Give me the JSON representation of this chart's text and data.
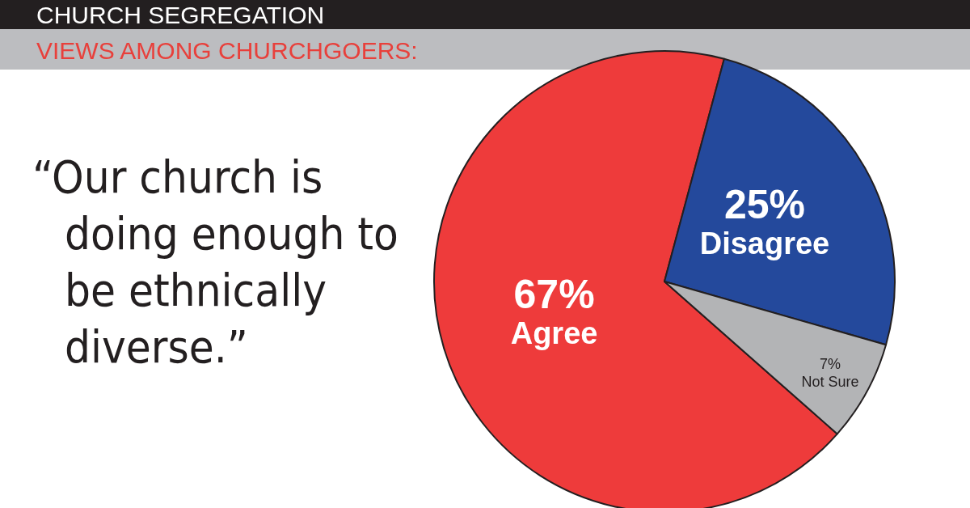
{
  "chart_data": {
    "type": "pie",
    "title": "CHURCH SEGREGATION",
    "subtitle": "VIEWS AMONG CHURCHGOERS:",
    "annotations": [
      "“Our church is doing enough to be ethnically diverse.”"
    ],
    "categories": [
      "Agree",
      "Disagree",
      "Not Sure"
    ],
    "values": [
      67,
      25,
      7
    ],
    "colors": [
      "#ee3b3b",
      "#24499c",
      "#b3b4b6"
    ],
    "value_labels": [
      "67%",
      "25%",
      "7%"
    ],
    "legend": false
  }
}
